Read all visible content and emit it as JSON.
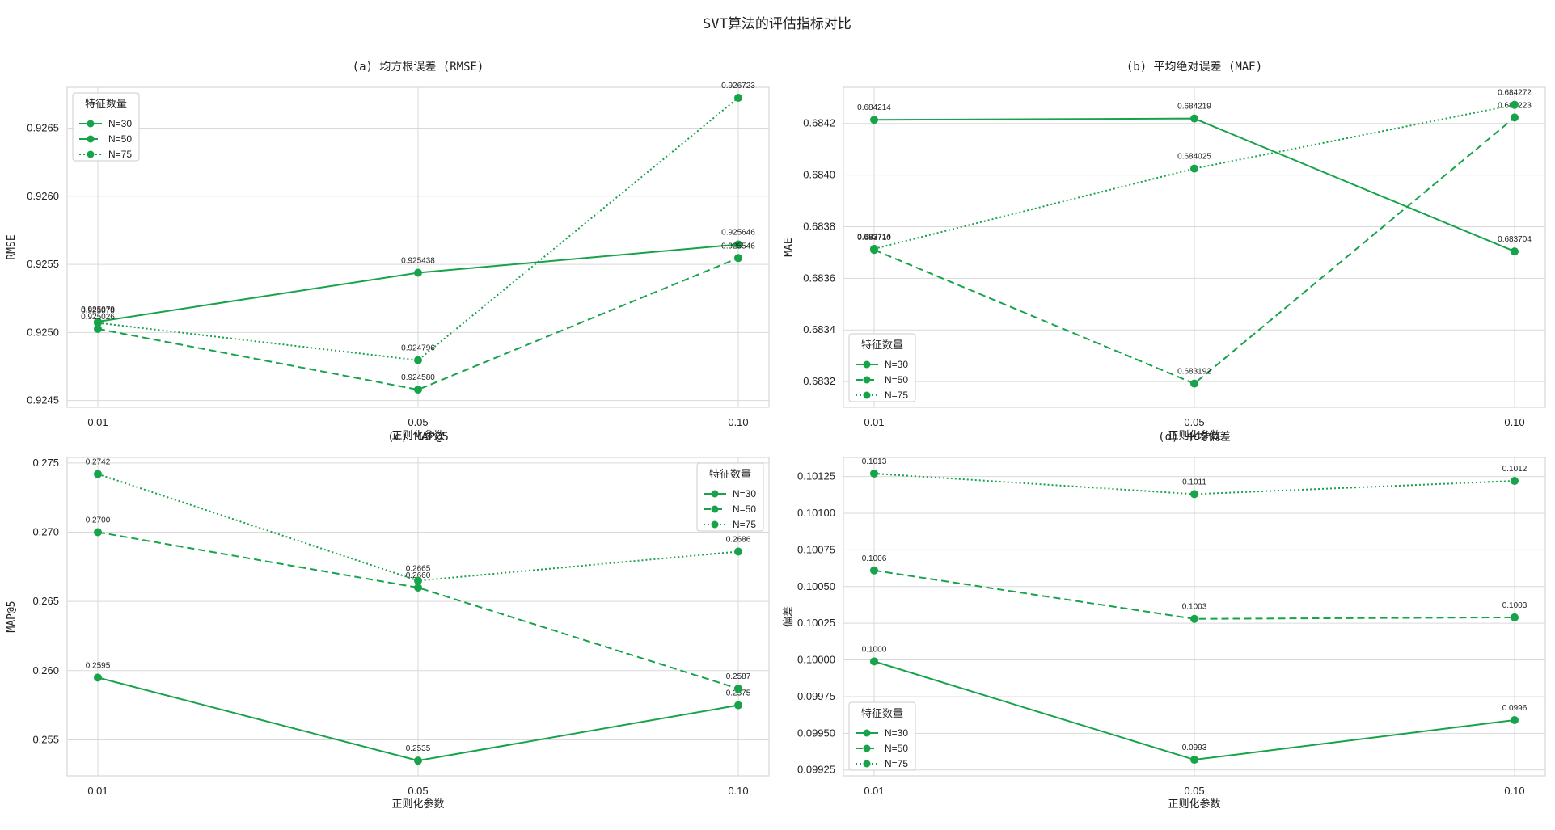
{
  "figure": {
    "title": "SVT算法的评估指标对比"
  },
  "colors": {
    "series": "#16a34a",
    "grid": "#d9d9d9",
    "frame": "#cfcfcf"
  },
  "chart_data": [
    {
      "type": "line",
      "title": "(a) 均方根误差 (RMSE)",
      "xlabel": "正则化参数",
      "ylabel": "RMSE",
      "categories": [
        "0.01",
        "0.05",
        "0.10"
      ],
      "ylim": [
        0.92445,
        0.9268
      ],
      "yticks": [
        0.9245,
        0.925,
        0.9255,
        0.926,
        0.9265
      ],
      "ytick_labels": [
        "0.9245",
        "0.9250",
        "0.9255",
        "0.9260",
        "0.9265"
      ],
      "grid": true,
      "legend": {
        "title": "特征数量",
        "position": "upper-left"
      },
      "series": [
        {
          "name": "N=30",
          "style": "solid",
          "values": [
            0.925079,
            0.925438,
            0.925646
          ],
          "labels": [
            "0.925079",
            "0.925438",
            "0.925646"
          ]
        },
        {
          "name": "N=50",
          "style": "dashed",
          "values": [
            0.925026,
            0.92458,
            0.925546
          ],
          "labels": [
            "0.925026",
            "0.924580",
            "0.925546"
          ]
        },
        {
          "name": "N=75",
          "style": "dotted",
          "values": [
            0.92507,
            0.924796,
            0.926723
          ],
          "labels": [
            "0.925070",
            "0.924796",
            "0.926723"
          ]
        }
      ]
    },
    {
      "type": "line",
      "title": "(b) 平均绝对误差 (MAE)",
      "xlabel": "正则化参数",
      "ylabel": "MAE",
      "categories": [
        "0.01",
        "0.05",
        "0.10"
      ],
      "ylim": [
        0.6831,
        0.68434
      ],
      "yticks": [
        0.6832,
        0.6834,
        0.6836,
        0.6838,
        0.684,
        0.6842
      ],
      "ytick_labels": [
        "0.6832",
        "0.6834",
        "0.6836",
        "0.6838",
        "0.6840",
        "0.6842"
      ],
      "grid": true,
      "legend": {
        "title": "特征数量",
        "position": "lower-left"
      },
      "series": [
        {
          "name": "N=30",
          "style": "solid",
          "values": [
            0.684214,
            0.684219,
            0.683704
          ],
          "labels": [
            "0.684214",
            "0.684219",
            "0.683704"
          ]
        },
        {
          "name": "N=50",
          "style": "dashed",
          "values": [
            0.68371,
            0.683192,
            0.684223
          ],
          "labels": [
            "0.683710",
            "0.683192",
            "0.684223"
          ]
        },
        {
          "name": "N=75",
          "style": "dotted",
          "values": [
            0.683714,
            0.684025,
            0.684272
          ],
          "labels": [
            "0.683714",
            "0.684025",
            "0.684272"
          ]
        }
      ]
    },
    {
      "type": "line",
      "title": "(c) MAP@5",
      "xlabel": "正则化参数",
      "ylabel": "MAP@5",
      "categories": [
        "0.01",
        "0.05",
        "0.10"
      ],
      "ylim": [
        0.2524,
        0.2754
      ],
      "yticks": [
        0.255,
        0.26,
        0.265,
        0.27,
        0.275
      ],
      "ytick_labels": [
        "0.255",
        "0.260",
        "0.265",
        "0.270",
        "0.275"
      ],
      "grid": true,
      "legend": {
        "title": "特征数量",
        "position": "upper-right"
      },
      "series": [
        {
          "name": "N=30",
          "style": "solid",
          "values": [
            0.2595,
            0.2535,
            0.2575
          ],
          "labels": [
            "0.2595",
            "0.2535",
            "0.2575"
          ]
        },
        {
          "name": "N=50",
          "style": "dashed",
          "values": [
            0.27,
            0.266,
            0.2587
          ],
          "labels": [
            "0.2700",
            "0.2660",
            "0.2587"
          ]
        },
        {
          "name": "N=75",
          "style": "dotted",
          "values": [
            0.2742,
            0.2665,
            0.2686
          ],
          "labels": [
            "0.2742",
            "0.2665",
            "0.2686"
          ]
        }
      ]
    },
    {
      "type": "line",
      "title": "(d) 平均偏差",
      "xlabel": "正则化参数",
      "ylabel": "偏差",
      "categories": [
        "0.01",
        "0.05",
        "0.10"
      ],
      "ylim": [
        0.09921,
        0.10138
      ],
      "yticks": [
        0.09925,
        0.0995,
        0.09975,
        0.1,
        0.10025,
        0.1005,
        0.10075,
        0.101,
        0.10125
      ],
      "ytick_labels": [
        "0.09925",
        "0.09950",
        "0.09975",
        "0.10000",
        "0.10025",
        "0.10050",
        "0.10075",
        "0.10100",
        "0.10125"
      ],
      "grid": true,
      "legend": {
        "title": "特征数量",
        "position": "lower-left"
      },
      "series": [
        {
          "name": "N=30",
          "style": "solid",
          "values": [
            0.09999,
            0.09932,
            0.09959
          ],
          "labels": [
            "0.1000",
            "0.0993",
            "0.0996"
          ]
        },
        {
          "name": "N=50",
          "style": "dashed",
          "values": [
            0.10061,
            0.10028,
            0.10029
          ],
          "labels": [
            "0.1006",
            "0.1003",
            "0.1003"
          ]
        },
        {
          "name": "N=75",
          "style": "dotted",
          "values": [
            0.10127,
            0.10113,
            0.10122
          ],
          "labels": [
            "0.1013",
            "0.1011",
            "0.1012"
          ]
        }
      ]
    }
  ]
}
